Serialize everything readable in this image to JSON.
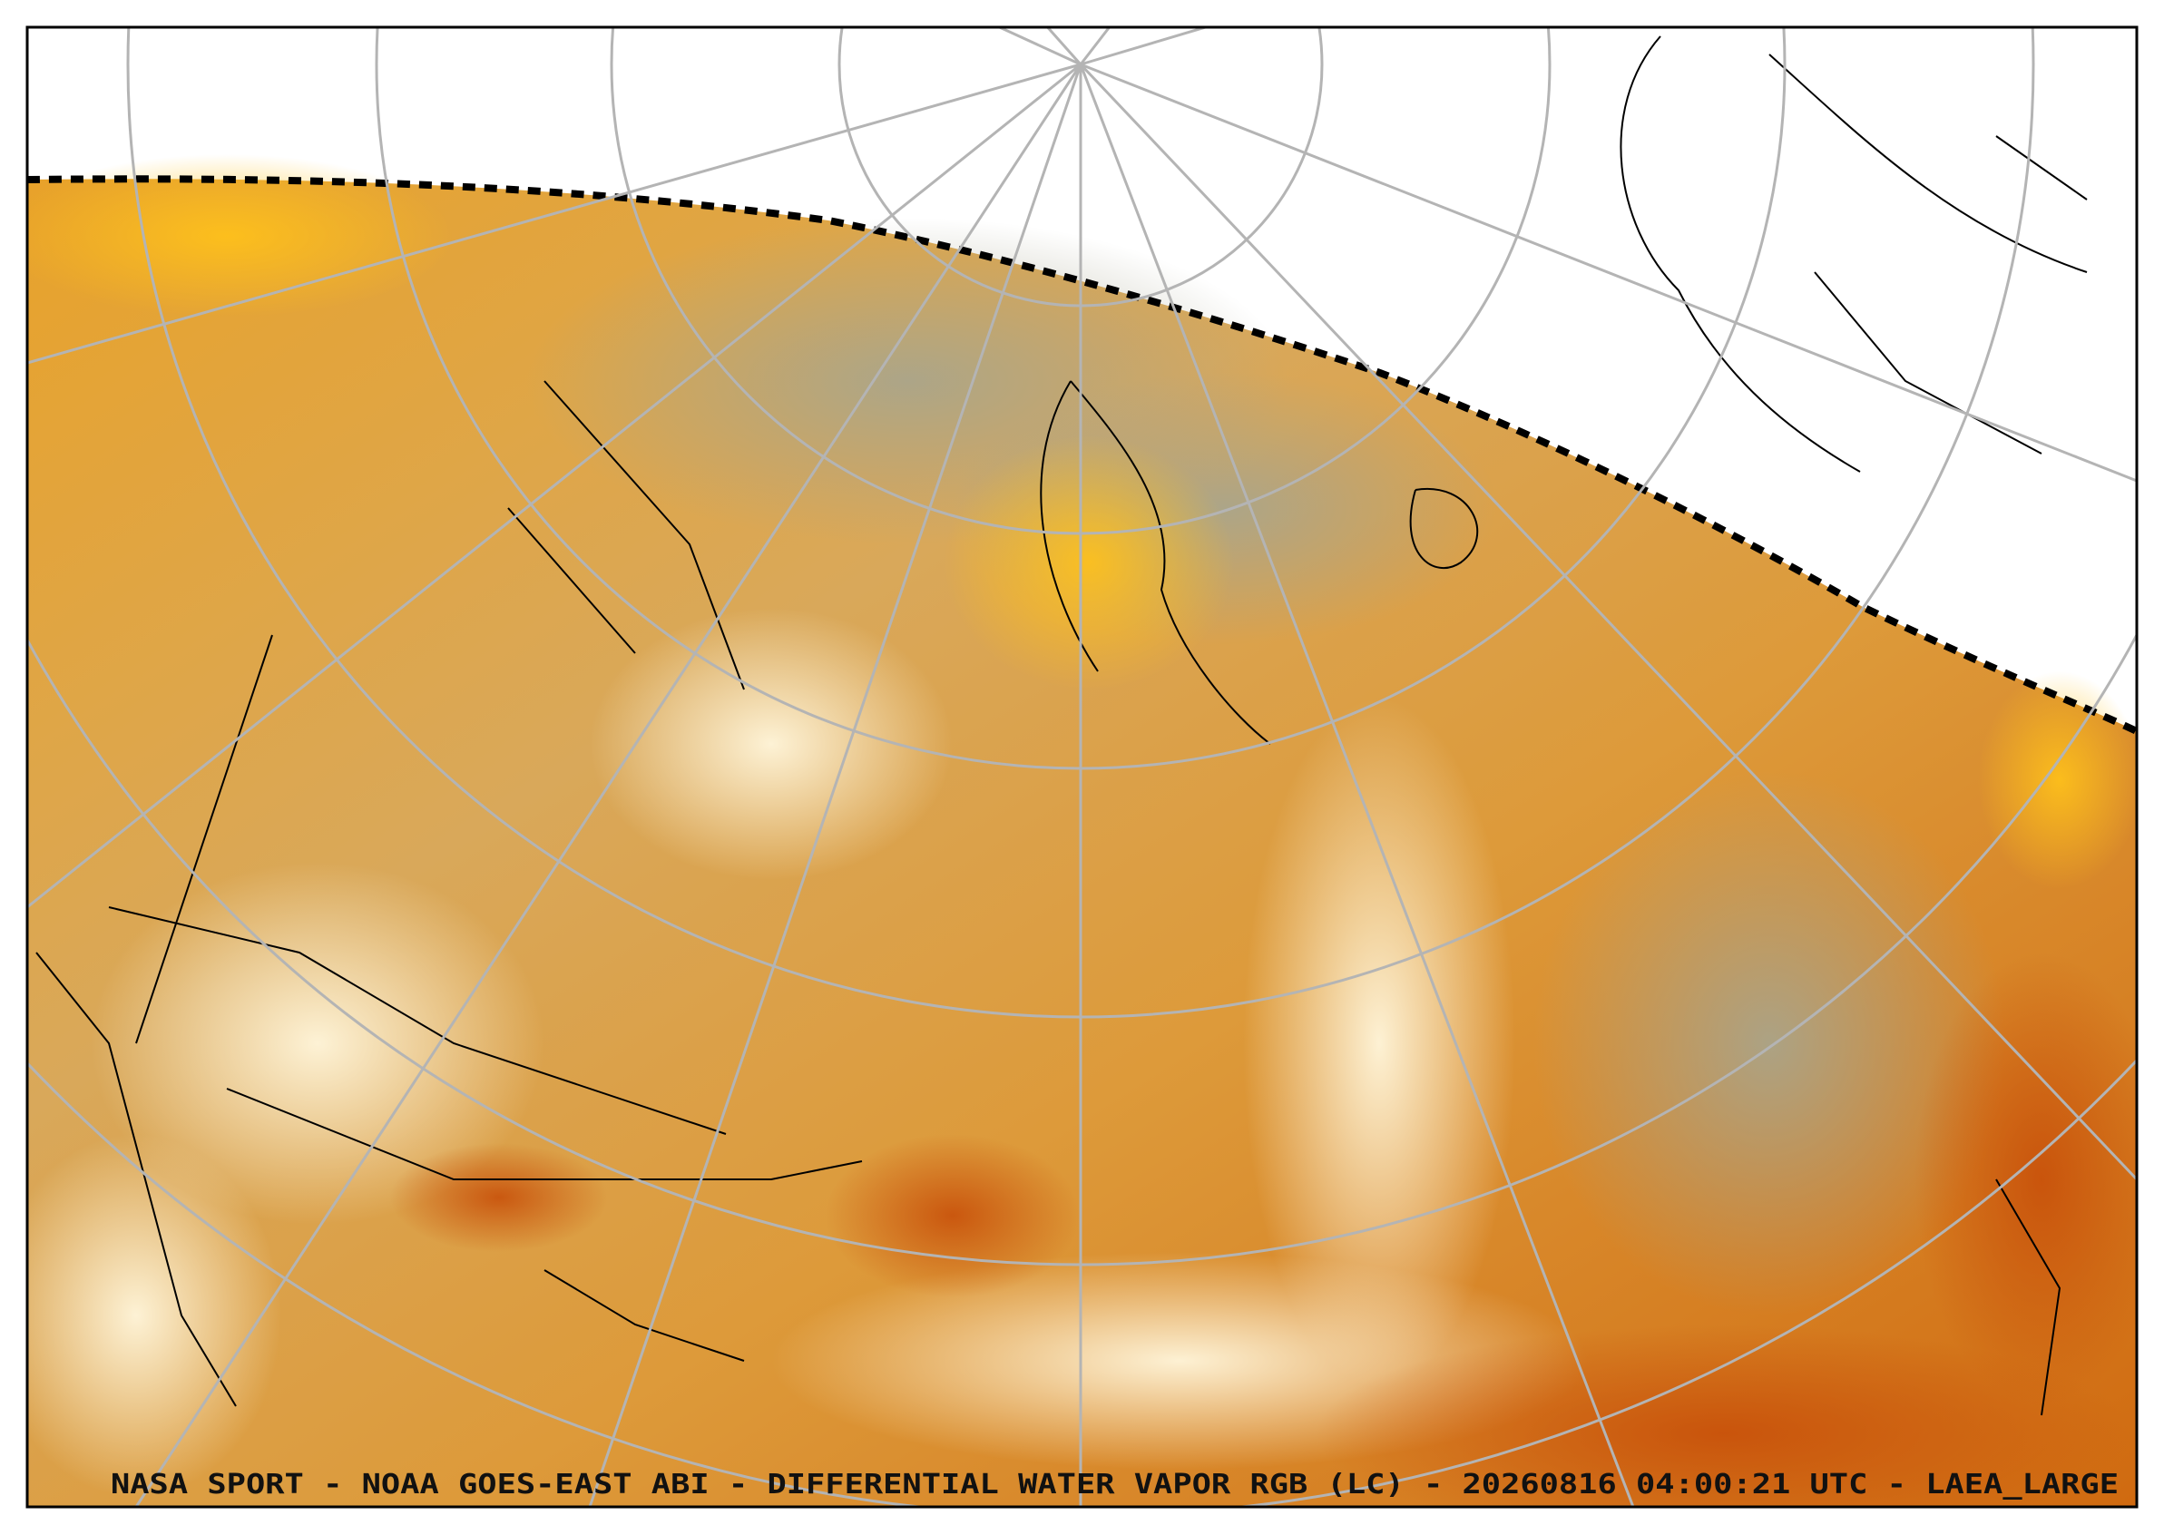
{
  "caption": "NASA SPORT  -  NOAA GOES-EAST ABI  -  DIFFERENTIAL WATER VAPOR RGB (LC)  -  20260816 04:00:21 UTC - LAEA_LARGE"
}
